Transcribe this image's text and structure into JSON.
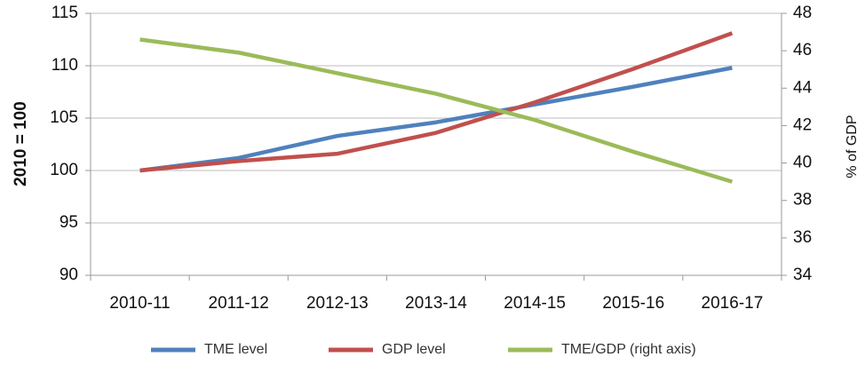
{
  "chart_data": {
    "type": "line",
    "y_label": "2010 = 100",
    "y2_label": "% of GDP",
    "categories": [
      "2010-11",
      "2011-12",
      "2012-13",
      "2013-14",
      "2014-15",
      "2015-16",
      "2016-17"
    ],
    "series": [
      {
        "name": "TME level",
        "color": "#4f81bd",
        "values": [
          100,
          101.2,
          103.3,
          104.6,
          106.3,
          108,
          109.8
        ]
      },
      {
        "name": "GDP level",
        "color": "#c0504d",
        "values": [
          100,
          100.9,
          101.6,
          103.6,
          106.5,
          109.7,
          113.1
        ]
      },
      {
        "name": "TME/GDP (right axis)",
        "color": "#9bbb59",
        "axis": "y2",
        "values": [
          46.6,
          45.9,
          44.8,
          43.7,
          42.3,
          40.6,
          39.0
        ]
      }
    ],
    "ylim": [
      90,
      115
    ],
    "yticks": [
      90,
      95,
      100,
      105,
      110,
      115
    ],
    "y2lim": [
      34,
      48
    ],
    "y2ticks": [
      34,
      36,
      38,
      40,
      42,
      44,
      46,
      48
    ],
    "grid": true,
    "legend": "bottom"
  }
}
